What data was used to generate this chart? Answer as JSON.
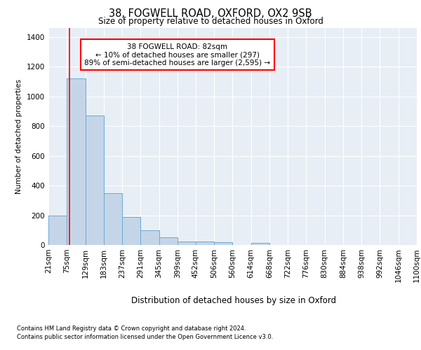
{
  "title_line1": "38, FOGWELL ROAD, OXFORD, OX2 9SB",
  "title_line2": "Size of property relative to detached houses in Oxford",
  "xlabel": "Distribution of detached houses by size in Oxford",
  "ylabel": "Number of detached properties",
  "bar_color": "#c5d5e8",
  "bar_edge_color": "#6aaad4",
  "annotation_line1": "38 FOGWELL ROAD: 82sqm",
  "annotation_line2": "← 10% of detached houses are smaller (297)",
  "annotation_line3": "89% of semi-detached houses are larger (2,595) →",
  "property_size": 82,
  "bin_edges": [
    21,
    75,
    129,
    183,
    237,
    291,
    345,
    399,
    452,
    506,
    560,
    614,
    668,
    722,
    776,
    830,
    884,
    938,
    992,
    1046,
    1100
  ],
  "bar_heights": [
    197,
    1120,
    870,
    350,
    190,
    98,
    50,
    25,
    22,
    18,
    0,
    12,
    0,
    0,
    0,
    0,
    0,
    0,
    0,
    0
  ],
  "tick_labels": [
    "21sqm",
    "75sqm",
    "129sqm",
    "183sqm",
    "237sqm",
    "291sqm",
    "345sqm",
    "399sqm",
    "452sqm",
    "506sqm",
    "560sqm",
    "614sqm",
    "668sqm",
    "722sqm",
    "776sqm",
    "830sqm",
    "884sqm",
    "938sqm",
    "992sqm",
    "1046sqm",
    "1100sqm"
  ],
  "ylim": [
    0,
    1460
  ],
  "yticks": [
    0,
    200,
    400,
    600,
    800,
    1000,
    1200,
    1400
  ],
  "footer_line1": "Contains HM Land Registry data © Crown copyright and database right 2024.",
  "footer_line2": "Contains public sector information licensed under the Open Government Licence v3.0.",
  "red_line_x": 82,
  "plot_bg_color": "#e8eef5"
}
